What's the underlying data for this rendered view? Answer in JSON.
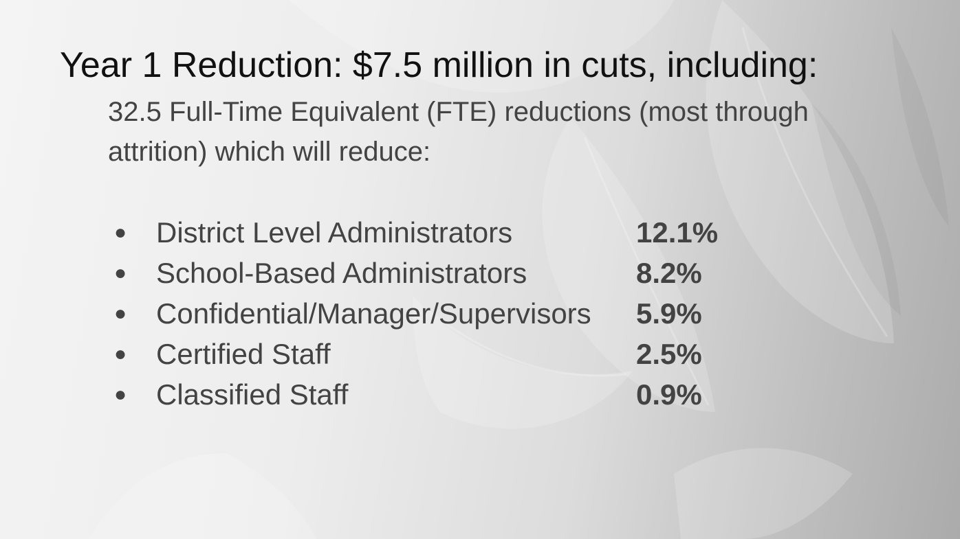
{
  "slide": {
    "title": "Year 1 Reduction: $7.5 million in cuts, including:",
    "subtitle": "32.5 Full-Time Equivalent (FTE) reductions (most through attrition) which will reduce:",
    "bullet_glyph": "●",
    "reductions": [
      {
        "category": "District Level Administrators",
        "percent": "12.1%"
      },
      {
        "category": "School-Based Administrators",
        "percent": "8.2%"
      },
      {
        "category": "Confidential/Manager/Supervisors",
        "percent": "5.9%"
      },
      {
        "category": "Certified Staff",
        "percent": "2.5%"
      },
      {
        "category": "Classified Staff",
        "percent": "0.9%"
      }
    ]
  },
  "theme": {
    "title_color": "#111111",
    "text_color": "#434343",
    "background_light": "#f4f4f4",
    "background_dark": "#ababab"
  }
}
